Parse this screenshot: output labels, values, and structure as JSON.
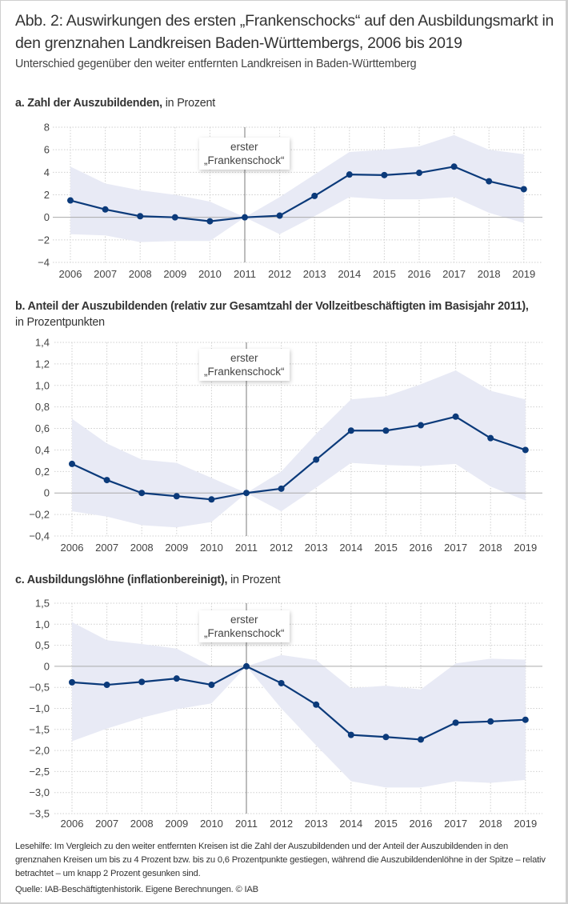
{
  "title": "Abb. 2: Auswirkungen des ersten „Frankenschocks“ auf den Ausbildungsmarkt in den grenznahen Landkreisen Baden-Württembergs, 2006 bis 2019",
  "subtitle": "Unterschied gegenüber den weiter entfernten Landkreisen in Baden-Württemberg",
  "annotation": {
    "line1": "erster",
    "line2": "„Frankenschock“"
  },
  "colors": {
    "line": "#0b3a7a",
    "band": "#e8eaf5",
    "grid": "#cfcfcf",
    "zero": "#aaaaaa",
    "marker_line": "#7a7a7a"
  },
  "panels": [
    {
      "title_bold": "a. Zahl der Auszubildenden,",
      "title_rest": " in Prozent",
      "title_line2": ""
    },
    {
      "title_bold": "b. Anteil der Auszubildenden (relativ zur Gesamtzahl der Vollzeitbeschäftigten im Basisjahr 2011),",
      "title_rest": "",
      "title_line2": "in Prozentpunkten"
    },
    {
      "title_bold": "c. Ausbildungslöhne (inflationbereinigt),",
      "title_rest": " in Prozent",
      "title_line2": ""
    }
  ],
  "footer": {
    "note": "Lesehilfe: Im Vergleich zu den weiter entfernten Kreisen ist die Zahl der Auszubildenden und der Anteil der Auszubildenden in den grenznahen Kreisen um bis zu 4 Prozent bzw. bis zu 0,6 Prozentpunkte gestiegen, während die Auszubildendenlöhne in der Spitze – relativ betrachtet – um knapp 2 Prozent gesunken sind.",
    "source": "Quelle: IAB-Beschäftigtenhistorik. Eigene Berechnungen.  © IAB"
  },
  "chart_data": [
    {
      "type": "line",
      "title": "a. Zahl der Auszubildenden, in Prozent",
      "x": [
        "2006",
        "2007",
        "2008",
        "2009",
        "2010",
        "2011",
        "2012",
        "2013",
        "2014",
        "2015",
        "2016",
        "2017",
        "2018",
        "2019"
      ],
      "series": [
        {
          "name": "Effekt",
          "values": [
            1.5,
            0.7,
            0.1,
            0.0,
            -0.35,
            0.0,
            0.15,
            1.9,
            3.8,
            3.75,
            3.95,
            4.5,
            3.2,
            2.5
          ]
        },
        {
          "name": "Konfidenzband oben",
          "values": [
            4.5,
            3.0,
            2.4,
            2.0,
            1.4,
            0.0,
            1.8,
            3.8,
            5.8,
            6.0,
            6.3,
            7.3,
            6.0,
            5.6
          ]
        },
        {
          "name": "Konfidenzband unten",
          "values": [
            -1.5,
            -1.6,
            -2.2,
            -2.1,
            -2.1,
            0.0,
            -1.5,
            0.1,
            1.8,
            1.6,
            1.6,
            1.8,
            0.4,
            -0.5
          ]
        }
      ],
      "yticks": [
        "8",
        "6",
        "4",
        "2",
        "0",
        "−2",
        "−4"
      ],
      "ytick_values": [
        8,
        6,
        4,
        2,
        0,
        -2,
        -4
      ],
      "ylim": [
        -4,
        8
      ],
      "xlabel": "",
      "ylabel": "",
      "grid": true,
      "annotation_year": "2011"
    },
    {
      "type": "line",
      "title": "b. Anteil der Auszubildenden (relativ zur Gesamtzahl der Vollzeitbeschäftigten im Basisjahr 2011), in Prozentpunkten",
      "x": [
        "2006",
        "2007",
        "2008",
        "2009",
        "2010",
        "2011",
        "2012",
        "2013",
        "2014",
        "2015",
        "2016",
        "2017",
        "2018",
        "2019"
      ],
      "series": [
        {
          "name": "Effekt",
          "values": [
            0.27,
            0.12,
            0.0,
            -0.03,
            -0.06,
            0.0,
            0.04,
            0.31,
            0.58,
            0.58,
            0.63,
            0.71,
            0.51,
            0.4
          ]
        },
        {
          "name": "Konfidenzband oben",
          "values": [
            0.69,
            0.46,
            0.31,
            0.28,
            0.14,
            0.0,
            0.2,
            0.55,
            0.87,
            0.9,
            1.01,
            1.14,
            0.95,
            0.87
          ]
        },
        {
          "name": "Konfidenzband unten",
          "values": [
            -0.17,
            -0.22,
            -0.3,
            -0.32,
            -0.27,
            0.0,
            -0.17,
            0.05,
            0.28,
            0.26,
            0.25,
            0.27,
            0.06,
            -0.07
          ]
        }
      ],
      "yticks": [
        "1,4",
        "1,2",
        "1,0",
        "0,8",
        "0,6",
        "0,4",
        "0,2",
        "0",
        "−0,2",
        "−0,4"
      ],
      "ytick_values": [
        1.4,
        1.2,
        1.0,
        0.8,
        0.6,
        0.4,
        0.2,
        0,
        -0.2,
        -0.4
      ],
      "ylim": [
        -0.4,
        1.4
      ],
      "xlabel": "",
      "ylabel": "",
      "grid": true,
      "annotation_year": "2011"
    },
    {
      "type": "line",
      "title": "c. Ausbildungslöhne (inflationbereinigt), in Prozent",
      "x": [
        "2006",
        "2007",
        "2008",
        "2009",
        "2010",
        "2011",
        "2012",
        "2013",
        "2014",
        "2015",
        "2016",
        "2017",
        "2018",
        "2019"
      ],
      "series": [
        {
          "name": "Effekt",
          "values": [
            -0.38,
            -0.44,
            -0.37,
            -0.29,
            -0.44,
            0.0,
            -0.4,
            -0.91,
            -1.63,
            -1.68,
            -1.74,
            -1.34,
            -1.31,
            -1.27
          ]
        },
        {
          "name": "Konfidenzband oben",
          "values": [
            1.05,
            0.62,
            0.53,
            0.42,
            0.0,
            0.0,
            0.27,
            0.15,
            -0.52,
            -0.46,
            -0.55,
            0.07,
            0.18,
            0.16
          ]
        },
        {
          "name": "Konfidenzband unten",
          "values": [
            -1.78,
            -1.48,
            -1.22,
            -1.02,
            -0.88,
            0.0,
            -1.0,
            -1.88,
            -2.73,
            -2.88,
            -2.88,
            -2.73,
            -2.77,
            -2.7
          ]
        }
      ],
      "yticks": [
        "1,5",
        "1,0",
        "0,5",
        "0",
        "−0,5",
        "−1,0",
        "−1,5",
        "−2,0",
        "−2,5",
        "−3,0",
        "−3,5"
      ],
      "ytick_values": [
        1.5,
        1.0,
        0.5,
        0,
        -0.5,
        -1.0,
        -1.5,
        -2.0,
        -2.5,
        -3.0,
        -3.5
      ],
      "ylim": [
        -3.5,
        1.5
      ],
      "xlabel": "",
      "ylabel": "",
      "grid": true,
      "annotation_year": "2011"
    }
  ]
}
